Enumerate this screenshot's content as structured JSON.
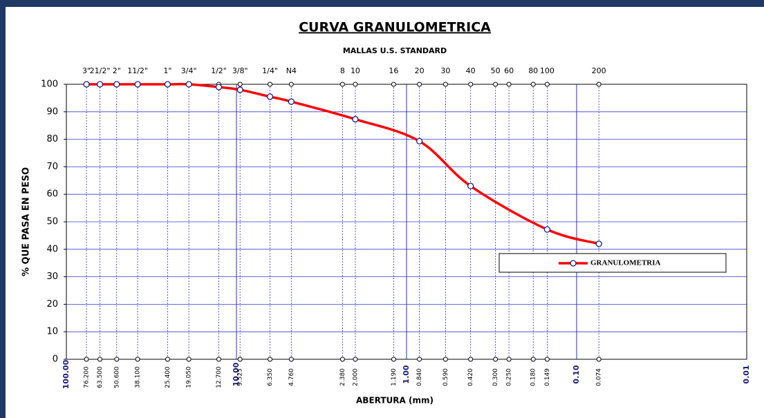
{
  "chart_data": {
    "type": "line",
    "title": "CURVA GRANULOMETRICA",
    "subtitle": "MALLAS U.S. STANDARD",
    "x_label": "ABERTURA (mm)",
    "y_label": "% QUE PASA EN PESO",
    "log_x": true,
    "xlim": [
      100,
      0.01
    ],
    "xticks": [
      {
        "value": 100,
        "label": "100.00"
      },
      {
        "value": 10,
        "label": "10.00"
      },
      {
        "value": 1,
        "label": "1.00"
      },
      {
        "value": 0.1,
        "label": "0.10"
      },
      0.01
    ],
    "ylim": [
      0,
      100
    ],
    "yticks": [
      0,
      10,
      20,
      30,
      40,
      50,
      60,
      70,
      80,
      90,
      100
    ],
    "grid": true,
    "legend": "right",
    "sieves": {
      "names": [
        "3\"",
        "21/2\"",
        "2\"",
        "11/2\"",
        "1\"",
        "3/4\"",
        "1/2\"",
        "3/8\"",
        "1/4\"",
        "N4",
        "8",
        "10",
        "16",
        "20",
        "30",
        "40",
        "50",
        "60",
        "80",
        "100",
        "200"
      ],
      "openings": [
        {
          "value": 76.2,
          "label": "76.200"
        },
        {
          "value": 63.5,
          "label": "63.500"
        },
        {
          "value": 50.6,
          "label": "50.600"
        },
        {
          "value": 38.1,
          "label": "38.100"
        },
        {
          "value": 25.4,
          "label": "25.400"
        },
        {
          "value": 19.05,
          "label": "19.050"
        },
        {
          "value": 12.7,
          "label": "12.700"
        },
        9.525,
        {
          "value": 6.35,
          "label": "6.350"
        },
        {
          "value": 4.76,
          "label": "4.760"
        },
        {
          "value": 2.38,
          "label": "2.380"
        },
        {
          "value": 2,
          "label": "2.000"
        },
        {
          "value": 1.19,
          "label": "1.190"
        },
        {
          "value": 0.84,
          "label": "0.840"
        },
        {
          "value": 0.59,
          "label": "0.590"
        },
        {
          "value": 0.42,
          "label": "0.420"
        },
        {
          "value": 0.3,
          "label": "0.300"
        },
        {
          "value": 0.25,
          "label": "0.250"
        },
        {
          "value": 0.18,
          "label": "0.180"
        },
        0.149,
        0.074
      ]
    },
    "series": [
      {
        "name": "GRANULOMETRIA",
        "color": "#ff0000",
        "x": [
          76.2,
          63.5,
          50.6,
          38.1,
          25.4,
          19.05,
          12.7,
          9.525,
          6.35,
          4.76,
          2,
          0.84,
          0.42,
          0.149,
          0.074
        ],
        "values": [
          100,
          100,
          100,
          100,
          100,
          100,
          99,
          98,
          95.5,
          93.7,
          87.3,
          79.3,
          63,
          47.2,
          42
        ]
      }
    ]
  }
}
